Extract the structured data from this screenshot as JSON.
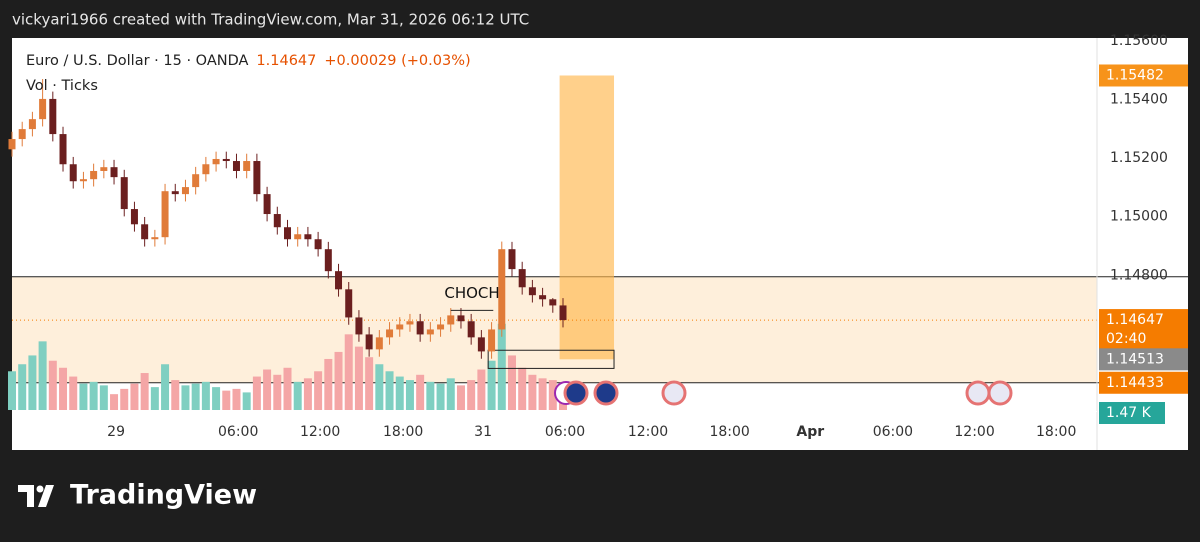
{
  "header": {
    "credit": "vickyari1966 created with TradingView.com, Mar 31, 2026 06:12 UTC",
    "brand": "TradingView"
  },
  "chart_data": {
    "type": "candlestick",
    "symbol": "Euro / U.S. Dollar · 15 · OANDA",
    "last": 1.14647,
    "change": "+0.00029 (+0.03%)",
    "countdown": "02:40",
    "up_color": "#e07b39",
    "down_color": "#6b1f1f",
    "x": [
      0,
      3,
      6,
      9,
      12,
      15,
      18,
      21,
      24,
      27,
      30,
      33,
      36,
      39,
      42,
      45,
      48,
      51,
      54,
      57,
      60,
      63,
      66,
      69,
      72,
      75,
      78,
      81,
      84,
      87,
      90,
      93,
      96,
      99,
      102,
      105,
      108,
      111,
      114,
      117,
      120,
      123,
      126,
      129,
      132,
      135,
      138,
      141,
      144,
      147,
      150,
      153,
      156,
      159,
      162
    ],
    "open": [
      1.1523,
      1.15265,
      1.15299,
      1.15333,
      1.15402,
      1.15282,
      1.15179,
      1.15121,
      1.15128,
      1.15156,
      1.15169,
      1.15135,
      1.15026,
      1.14974,
      1.14923,
      1.1493,
      1.15087,
      1.15077,
      1.15101,
      1.15145,
      1.15179,
      1.15197,
      1.1519,
      1.15156,
      1.1519,
      1.15077,
      1.15009,
      1.14964,
      1.14923,
      1.1494,
      1.14923,
      1.14889,
      1.14814,
      1.14752,
      1.14656,
      1.14598,
      1.14547,
      1.14588,
      1.14615,
      1.14632,
      1.14643,
      1.14598,
      1.14615,
      1.14632,
      1.14663,
      1.14643,
      1.14588,
      1.1454,
      1.14615,
      1.14889,
      1.14821,
      1.14759,
      1.14732,
      1.14718,
      1.14697
    ],
    "high": [
      1.1529,
      1.15324,
      1.15358,
      1.1547,
      1.15427,
      1.15307,
      1.15204,
      1.15153,
      1.15181,
      1.15194,
      1.15194,
      1.1516,
      1.15051,
      1.14999,
      1.14955,
      1.15112,
      1.15112,
      1.15126,
      1.1517,
      1.15204,
      1.15222,
      1.15222,
      1.15215,
      1.15215,
      1.15215,
      1.15102,
      1.15034,
      1.14989,
      1.14965,
      1.14965,
      1.14948,
      1.14914,
      1.14839,
      1.14777,
      1.14681,
      1.14623,
      1.14613,
      1.1464,
      1.14657,
      1.14668,
      1.14668,
      1.1464,
      1.14657,
      1.14688,
      1.14688,
      1.14668,
      1.14613,
      1.1464,
      1.14915,
      1.14914,
      1.14846,
      1.14784,
      1.14757,
      1.14722,
      1.14722
    ],
    "low": [
      1.15205,
      1.1524,
      1.15274,
      1.15308,
      1.15257,
      1.15154,
      1.15096,
      1.15096,
      1.15103,
      1.15131,
      1.1511,
      1.15001,
      1.14949,
      1.14898,
      1.14898,
      1.14905,
      1.15052,
      1.15052,
      1.15076,
      1.1512,
      1.15154,
      1.15165,
      1.15131,
      1.15131,
      1.15052,
      1.14984,
      1.14939,
      1.14898,
      1.14898,
      1.14898,
      1.14864,
      1.14789,
      1.14727,
      1.14631,
      1.14573,
      1.14522,
      1.14522,
      1.14563,
      1.1459,
      1.14607,
      1.14573,
      1.14573,
      1.1459,
      1.14607,
      1.14618,
      1.14563,
      1.14515,
      1.14515,
      1.1459,
      1.14796,
      1.14734,
      1.14707,
      1.14693,
      1.14672,
      1.14622
    ],
    "close": [
      1.15265,
      1.15299,
      1.15333,
      1.15402,
      1.15282,
      1.15179,
      1.15121,
      1.15128,
      1.15156,
      1.15169,
      1.15135,
      1.15026,
      1.14974,
      1.14923,
      1.1493,
      1.15087,
      1.15077,
      1.15101,
      1.15145,
      1.15179,
      1.15197,
      1.1519,
      1.15156,
      1.1519,
      1.15077,
      1.15009,
      1.14964,
      1.14923,
      1.1494,
      1.14923,
      1.14889,
      1.14814,
      1.14752,
      1.14656,
      1.14598,
      1.14547,
      1.14588,
      1.14615,
      1.14632,
      1.14643,
      1.14598,
      1.14615,
      1.14632,
      1.14663,
      1.14643,
      1.14588,
      1.1454,
      1.14615,
      1.14889,
      1.14821,
      1.14759,
      1.14732,
      1.14718,
      1.14697,
      1.14647
    ],
    "volume": {
      "title": "Vol · Ticks",
      "up_color": "#7fcfc1",
      "down_color": "#f4a6a6",
      "ylim": [
        0,
        5000
      ],
      "last_label": "1.47 K",
      "values": [
        2200,
        2600,
        3100,
        3900,
        2800,
        2400,
        1900,
        1500,
        1600,
        1400,
        900,
        1200,
        1500,
        2100,
        1300,
        2600,
        1700,
        1400,
        1500,
        1600,
        1300,
        1100,
        1200,
        1000,
        1900,
        2300,
        2000,
        2400,
        1600,
        1800,
        2200,
        2900,
        3300,
        4300,
        3600,
        3000,
        2600,
        2200,
        1900,
        1700,
        2000,
        1600,
        1500,
        1800,
        1400,
        1700,
        2300,
        2800,
        4900,
        3100,
        2400,
        2000,
        1800,
        1700,
        1470
      ]
    },
    "xlim": [
      0,
      319
    ],
    "xticks": [
      {
        "value": 30.6,
        "label": "29"
      },
      {
        "value": 66.5,
        "label": "06:00"
      },
      {
        "value": 90.6,
        "label": "12:00"
      },
      {
        "value": 115,
        "label": "18:00"
      },
      {
        "value": 138.5,
        "label": "31"
      },
      {
        "value": 162.6,
        "label": "06:00"
      },
      {
        "value": 187,
        "label": "12:00"
      },
      {
        "value": 211,
        "label": "18:00"
      },
      {
        "value": 234.7,
        "label": "Apr"
      },
      {
        "value": 259,
        "label": "06:00"
      },
      {
        "value": 283,
        "label": "12:00"
      },
      {
        "value": 307,
        "label": "18:00"
      }
    ],
    "ylim": [
      1.1434,
      1.1561
    ],
    "yticks": [
      {
        "value": 1.156,
        "label": "1.15600"
      },
      {
        "value": 1.154,
        "label": "1.15400"
      },
      {
        "value": 1.152,
        "label": "1.15200"
      },
      {
        "value": 1.15,
        "label": "1.15000"
      },
      {
        "value": 1.148,
        "label": "1.14800"
      }
    ],
    "price_labels": [
      {
        "value": 1.15482,
        "color": "#f7931a"
      },
      {
        "value": 1.14647,
        "color": "#f57c00"
      },
      {
        "value": 1.14513,
        "color": "#8a8a8a"
      },
      {
        "value": 1.14433,
        "color": "#f57c00"
      }
    ],
    "range_band": {
      "top": 1.14795,
      "bottom": 1.14433,
      "color": "#fde9cf"
    },
    "zone": {
      "x0": 161,
      "x1": 177,
      "top": 1.15482,
      "bottom": 1.14513,
      "color": "#ffb74d"
    },
    "box": {
      "x0": 140,
      "x1": 177,
      "top": 1.14544,
      "bottom": 1.14482
    },
    "choch": {
      "text": "CHOCH",
      "x0": 129,
      "x1": 141.5,
      "price": 1.1468
    }
  }
}
